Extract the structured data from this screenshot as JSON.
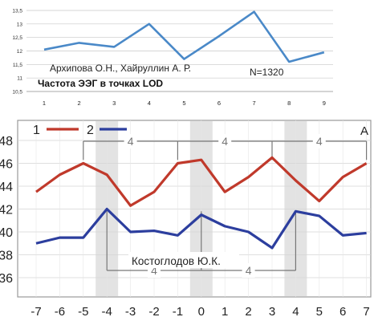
{
  "chart_data": [
    {
      "type": "line",
      "x": [
        "1",
        "2",
        "3",
        "4",
        "5",
        "6",
        "7",
        "8",
        "9"
      ],
      "yticks": [
        "10,5",
        "11",
        "11,5",
        "12",
        "12,5",
        "13",
        "13,5"
      ],
      "ylim": [
        10.5,
        13.5
      ],
      "grid": true,
      "series": [
        {
          "values": [
            12.05,
            12.3,
            12.15,
            13.0,
            11.7,
            12.55,
            13.45,
            11.6,
            11.95
          ]
        }
      ],
      "annotations": [
        "Архипова О.Н., Хайруллин  А. Р.",
        "N=1320",
        "Частота ЭЭГ в точках  LOD"
      ],
      "colors": {
        "line": "#4a89c8"
      }
    },
    {
      "type": "line",
      "x": [
        "-7",
        "-6",
        "-5",
        "-4",
        "-3",
        "-2",
        "-1",
        "0",
        "1",
        "2",
        "3",
        "4",
        "5",
        "6",
        "7"
      ],
      "yticks": [
        "36",
        "38",
        "40",
        "42",
        "44",
        "46",
        "48"
      ],
      "ylim": [
        34.5,
        49
      ],
      "grid": true,
      "legend": {
        "position": "top-left",
        "entries": [
          "1",
          "2"
        ]
      },
      "series": [
        {
          "name": "1",
          "values": [
            43.5,
            45.0,
            46.0,
            45.0,
            42.3,
            43.5,
            46.0,
            46.3,
            43.5,
            44.8,
            46.5,
            44.5,
            42.7,
            44.8,
            46.0
          ]
        },
        {
          "name": "2",
          "values": [
            39.0,
            39.5,
            39.5,
            42.0,
            40.0,
            40.1,
            39.7,
            41.5,
            40.5,
            40.0,
            38.6,
            41.8,
            41.4,
            39.7,
            39.9
          ]
        }
      ],
      "shaded_x": [
        "-4",
        "0",
        "4"
      ],
      "intervals_top": [
        "4",
        "4",
        "4"
      ],
      "intervals_bottom": [
        "4",
        "4"
      ],
      "annotations": [
        "Костоглодов Ю.К.",
        "А"
      ],
      "colors": {
        "series1": "#c0392b",
        "series2": "#2c3e9e"
      }
    }
  ]
}
